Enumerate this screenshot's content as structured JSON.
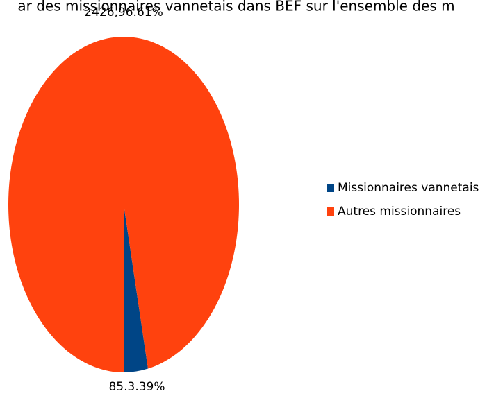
{
  "chart_data": {
    "type": "pie",
    "title": "ar des missionnaires vannetais dans BEF sur l'ensemble des m",
    "categories": [
      "Missionnaires vannetais",
      "Autres missionnaires"
    ],
    "values": [
      85,
      2426
    ],
    "value_labels": [
      "85.3.39%",
      "2426,96.61%"
    ],
    "colors": [
      "#004586",
      "#ff420e"
    ],
    "legend": "right"
  }
}
